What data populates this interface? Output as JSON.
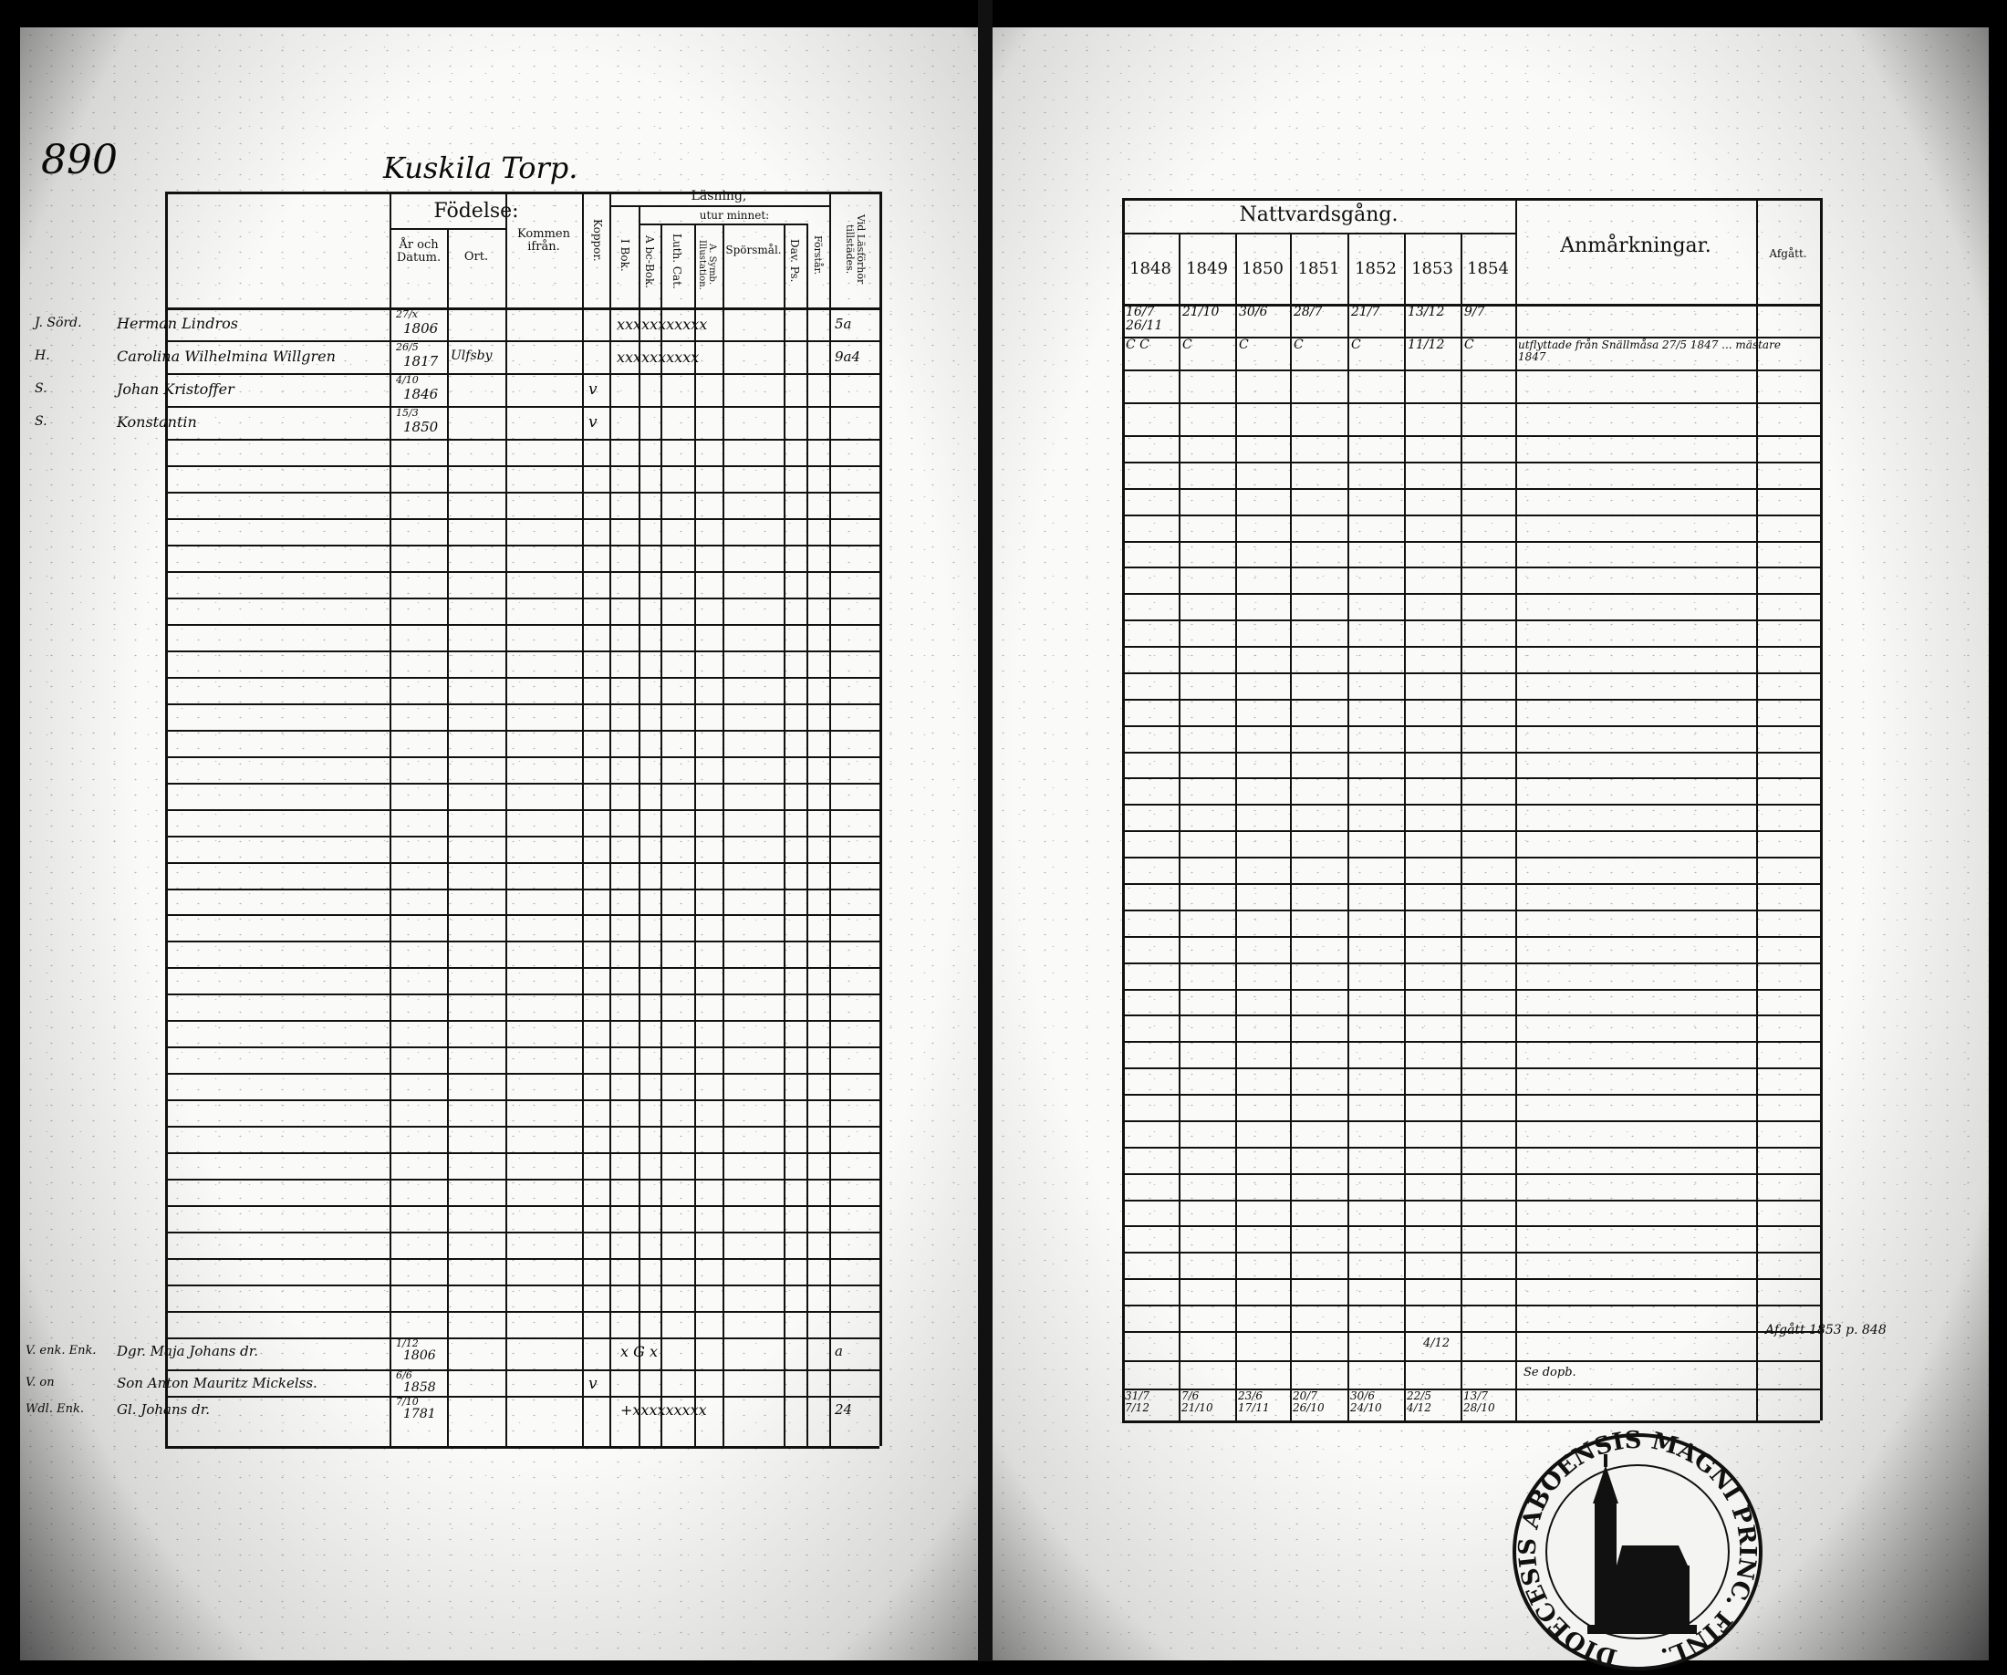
{
  "page_number": "890",
  "place_title": "Kuskila Torp.",
  "left_headers": {
    "fodelse": "Födelse:",
    "ar_datum": "År och Datum.",
    "ort": "Ort.",
    "kommen": "Kommen ifrån.",
    "koppor": "Koppor.",
    "lasning": "Läsning,",
    "utur_minnet": "utur minnet:",
    "i_bok": "I Bok.",
    "abc_bok": "A bc-Bok.",
    "luth_cat": "Luth. Cat.",
    "symb": "A. Symb. Illustation.",
    "sporsmal": "Spörsmål.",
    "dav_ps": "Dav. Ps.",
    "forstar": "Förstår.",
    "vid_las": "Vid Läsförhör tillstädes."
  },
  "right_headers": {
    "nattvard": "Nattvardsgång.",
    "years": [
      "1848",
      "1849",
      "1850",
      "1851",
      "1852",
      "1853",
      "1854"
    ],
    "anmarkningar": "Anmårkningar.",
    "afgatt": "Afgått."
  },
  "entries": [
    {
      "prefix": "J. Sörd.",
      "name": "Herman Lindros",
      "day": "27/x",
      "year": "1806",
      "ort": "",
      "koppor": "",
      "reading": "xxxxxxxxxxx",
      "vid": "5a"
    },
    {
      "prefix": "H.",
      "name": "Carolina Wilhelmina Willgren",
      "day": "26/5",
      "year": "1817",
      "ort": "Ulfsby",
      "koppor": "",
      "reading": "xxxxxxxxxx",
      "vid": "9a4"
    },
    {
      "prefix": "S.",
      "name": "Johan Kristoffer",
      "day": "4/10",
      "year": "1846",
      "ort": "",
      "koppor": "v",
      "reading": "",
      "vid": ""
    },
    {
      "prefix": "S.",
      "name": "Konstantin",
      "day": "15/3",
      "year": "1850",
      "ort": "",
      "koppor": "v",
      "reading": "",
      "vid": ""
    }
  ],
  "bottom_entries": [
    {
      "prefix": "V. enk. Enk.",
      "name": "Dgr. Maja Johans dr.",
      "day": "1/12",
      "year": "1806",
      "koppor": "",
      "reading": "x        G  x",
      "vid": "a"
    },
    {
      "prefix": "V. on",
      "name": "Son Anton Mauritz Mickelss.",
      "day": "6/6",
      "year": "1858",
      "koppor": "v",
      "reading": "",
      "vid": ""
    },
    {
      "prefix": "Wdl. Enk.",
      "name": "Gl. Johans dr.",
      "day": "7/10",
      "year": "1781",
      "koppor": "",
      "reading": "+xxxxxxxxx",
      "vid": "24"
    }
  ],
  "communion_rows": [
    [
      "16/7  26/11",
      "21/10",
      "30/6",
      "28/7",
      "21/7",
      "13/12",
      "9/7"
    ],
    [
      "C  C",
      "C",
      "C",
      "C",
      "C",
      "11/12",
      "C"
    ]
  ],
  "remark_row2": "utflyttade från Snällmåsa 27/5 1847 ... mästare 1847",
  "late_entries": {
    "nattvard_1853": "4/12",
    "remark": "Afgått 1853 p. 848",
    "remark_short": "Se dopb."
  },
  "communion_bottom": [
    "31/7  7/12",
    "7/6  21/10",
    "23/6  17/11",
    "20/7  26/10",
    "30/6  24/10",
    "22/5  4/12",
    "13/7  28/10"
  ],
  "stamp": {
    "text": "DIOECESIS ABOENSIS MAGNI PRINC. FINL."
  }
}
